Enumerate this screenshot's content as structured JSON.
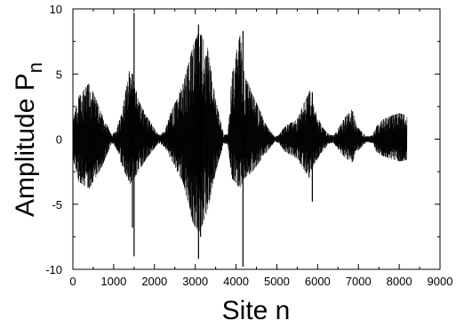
{
  "chart_data": {
    "type": "line",
    "title": "",
    "xlabel": "Site n",
    "ylabel": {
      "main": "Amplitude P",
      "sub": "n"
    },
    "xlim": [
      0,
      9000
    ],
    "ylim": [
      -10,
      10
    ],
    "xticks": [
      0,
      1000,
      2000,
      3000,
      4000,
      5000,
      6000,
      7000,
      8000,
      9000
    ],
    "yticks": [
      -10,
      -5,
      0,
      5,
      10
    ],
    "grid": false,
    "line_color": "#000000",
    "series": [
      {
        "n_max": 8192,
        "envelope": {
          "sites": [
            0,
            150,
            400,
            700,
            950,
            1050,
            1200,
            1400,
            1500,
            1600,
            1800,
            2100,
            2250,
            2400,
            2700,
            2950,
            3100,
            3300,
            3500,
            3700,
            3800,
            3900,
            4100,
            4200,
            4400,
            4750,
            4950,
            5050,
            5200,
            5500,
            5800,
            5900,
            6100,
            6300,
            6400,
            6500,
            6700,
            6850,
            6950,
            7200,
            7350,
            7450,
            7600,
            7800,
            8000,
            8192
          ],
          "upper": [
            1.5,
            3.3,
            4.3,
            2.0,
            0.3,
            0.6,
            2.0,
            5.5,
            4.5,
            3.0,
            1.8,
            0.3,
            0.6,
            2.0,
            4.2,
            7.2,
            8.3,
            7.0,
            3.0,
            0.3,
            0.4,
            5.0,
            8.0,
            5.0,
            3.5,
            1.0,
            0.2,
            0.3,
            1.0,
            1.5,
            3.8,
            2.5,
            1.0,
            0.3,
            0.3,
            0.8,
            1.8,
            2.3,
            1.0,
            0.2,
            0.3,
            1.0,
            1.5,
            1.8,
            2.0,
            1.8
          ],
          "lower": [
            -1.5,
            -3.3,
            -3.8,
            -2.2,
            -0.3,
            -0.6,
            -2.0,
            -3.5,
            -3.0,
            -2.5,
            -1.5,
            -0.3,
            -0.6,
            -1.5,
            -3.3,
            -6.5,
            -7.2,
            -5.5,
            -2.5,
            -0.3,
            -0.4,
            -3.0,
            -3.8,
            -3.0,
            -2.5,
            -1.0,
            -0.2,
            -0.3,
            -1.0,
            -1.5,
            -3.0,
            -2.0,
            -1.0,
            -0.3,
            -0.3,
            -0.8,
            -1.5,
            -1.8,
            -1.0,
            -0.2,
            -0.3,
            -1.0,
            -1.3,
            -1.5,
            -1.7,
            -1.6
          ]
        },
        "spikes": [
          {
            "site": 1500,
            "min": -9.0,
            "max": 9.7
          },
          {
            "site": 1460,
            "min": -6.8,
            "max": 5.0
          },
          {
            "site": 3080,
            "min": -9.2,
            "max": 8.8
          },
          {
            "site": 3130,
            "min": -7.5,
            "max": 8.0
          },
          {
            "site": 4170,
            "min": -9.8,
            "max": 8.3
          },
          {
            "site": 5870,
            "min": -4.8,
            "max": 3.6
          }
        ]
      }
    ]
  }
}
